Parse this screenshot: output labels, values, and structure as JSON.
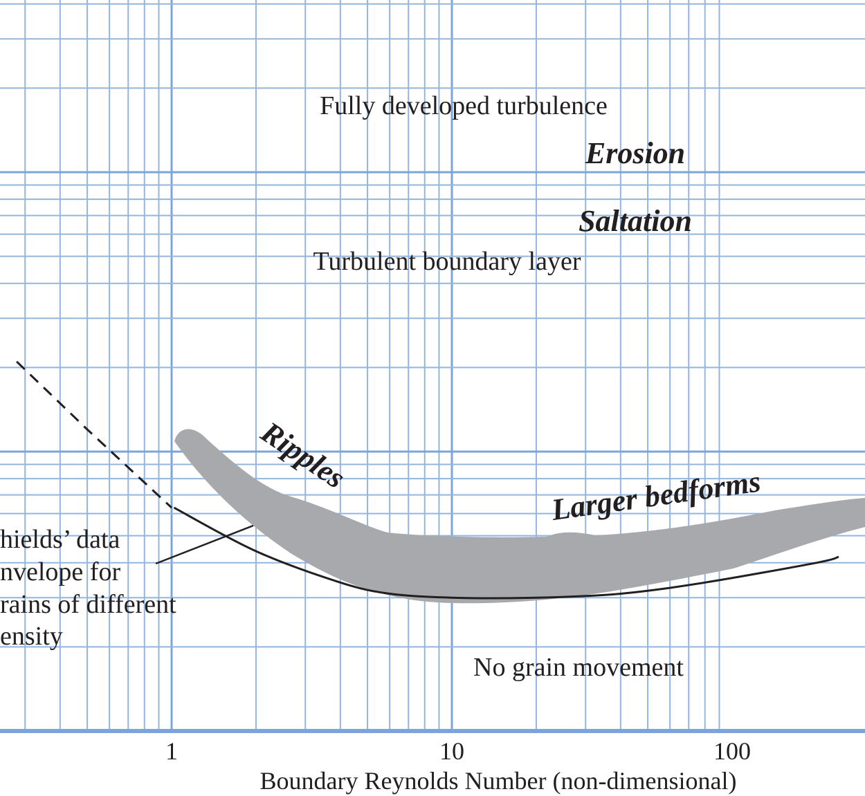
{
  "chart_data": {
    "type": "line",
    "title": "",
    "xlabel": "Boundary Reynolds Number (non-dimensional)",
    "ylabel": "",
    "x_scale": "log",
    "grid": true,
    "xticks": [
      {
        "value": 1,
        "label": "1"
      },
      {
        "value": 10,
        "label": "10"
      },
      {
        "value": 100,
        "label": "100"
      }
    ],
    "series": [
      {
        "style": "solid",
        "x": [
          1.02,
          2.0,
          4.0,
          6.0,
          10.0,
          20.0,
          40.0,
          80.0,
          200.0,
          240.0
        ],
        "y": [
          0.063,
          0.044,
          0.034,
          0.031,
          0.03,
          0.03,
          0.031,
          0.034,
          0.04,
          0.042
        ]
      },
      {
        "style": "dashed",
        "x": [
          0.28,
          0.5,
          1.0
        ],
        "y": [
          0.21,
          0.12,
          0.063
        ]
      }
    ],
    "envelope_label": "hields’ data nvelope for rains of different ensity",
    "envelope_label_lines": [
      "hields’ data",
      "nvelope for",
      "rains of different",
      "ensity"
    ],
    "annotations": {
      "fully_developed": "Fully developed turbulence",
      "erosion": "Erosion",
      "saltation": "Saltation",
      "turbulent_layer": "Turbulent boundary layer",
      "ripples": "Ripples",
      "larger_bedforms": "Larger bedforms",
      "no_movement": "No grain movement"
    },
    "colors": {
      "grid": "#93b5de",
      "grid_major": "#7ba5d8",
      "envelope": "#a7a9ac",
      "curve": "#231f20",
      "text": "#231f20"
    }
  }
}
